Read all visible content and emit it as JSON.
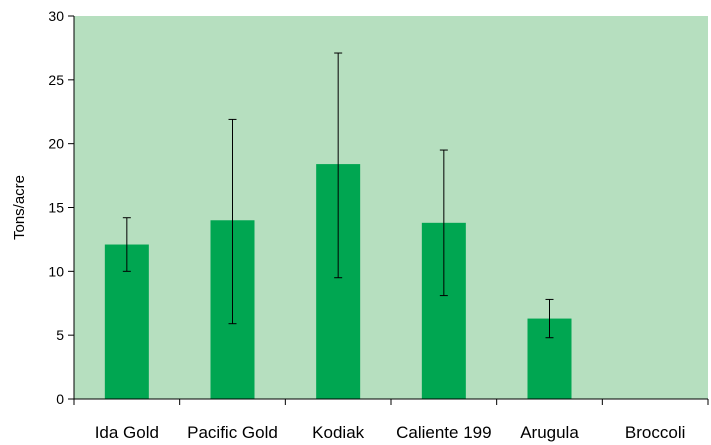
{
  "chart_data": {
    "type": "bar",
    "title": "",
    "xlabel": "",
    "ylabel": "Tons/acre",
    "ylim": [
      0,
      30
    ],
    "yticks": [
      0,
      5,
      10,
      15,
      20,
      25,
      30
    ],
    "grid": false,
    "legend": "none",
    "categories": [
      "Ida Gold",
      "Pacific Gold",
      "Kodiak",
      "Caliente 199",
      "Arugula",
      "Broccoli"
    ],
    "values": [
      12.1,
      14.0,
      18.4,
      13.8,
      6.3,
      0
    ],
    "error_low": [
      10.0,
      5.9,
      9.5,
      8.1,
      4.8,
      null
    ],
    "error_high": [
      14.2,
      21.9,
      27.1,
      19.5,
      7.8,
      null
    ],
    "colors": {
      "plot_background": "#b6dfbf",
      "bar": "#00a651",
      "axis": "#000000"
    }
  }
}
